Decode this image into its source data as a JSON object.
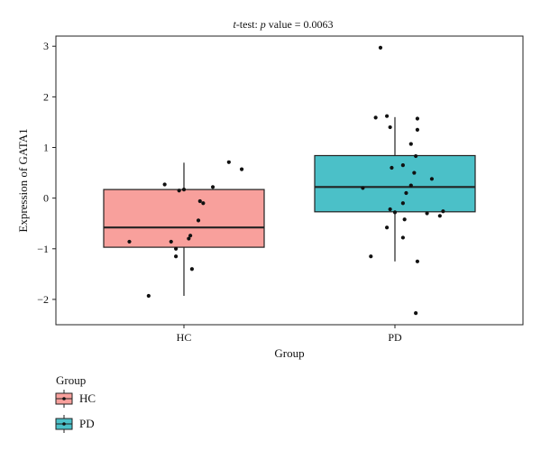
{
  "chart_data": {
    "type": "box",
    "title": {
      "prefix": "t",
      "prefix_rest": "-test: ",
      "p_symbol": "p",
      "rest": " value = 0.0063"
    },
    "xlabel": "Group",
    "ylabel": "Expression of GATA1",
    "ylim": [
      -2.5,
      3.2
    ],
    "yticks": [
      -2,
      -1,
      0,
      1,
      2,
      3
    ],
    "ytick_labels": [
      "−2",
      "−1",
      "0",
      "1",
      "2",
      "3"
    ],
    "categories": [
      "HC",
      "PD"
    ],
    "legend": {
      "title": "Group",
      "position": "bottom-left",
      "entries": [
        "HC",
        "PD"
      ]
    },
    "groups": [
      {
        "name": "HC",
        "color": "#F8A09C",
        "whisker_low": -1.93,
        "q1": -0.97,
        "median": -0.58,
        "q3": 0.17,
        "whisker_high": 0.7,
        "points": [
          {
            "dx": -0.22,
            "y": -1.93
          },
          {
            "dx": -0.34,
            "y": -0.86
          },
          {
            "dx": -0.08,
            "y": -0.86
          },
          {
            "dx": 0.03,
            "y": -0.8
          },
          {
            "dx": 0.04,
            "y": -0.74
          },
          {
            "dx": 0.09,
            "y": -0.44
          },
          {
            "dx": -0.05,
            "y": -1.15
          },
          {
            "dx": -0.05,
            "y": -1.0
          },
          {
            "dx": 0.05,
            "y": -1.4
          },
          {
            "dx": -0.12,
            "y": 0.27
          },
          {
            "dx": -0.03,
            "y": 0.15
          },
          {
            "dx": 0.0,
            "y": 0.17
          },
          {
            "dx": 0.1,
            "y": -0.06
          },
          {
            "dx": 0.12,
            "y": -0.1
          },
          {
            "dx": 0.18,
            "y": 0.22
          },
          {
            "dx": 0.28,
            "y": 0.71
          },
          {
            "dx": 0.36,
            "y": 0.57
          }
        ]
      },
      {
        "name": "PD",
        "color": "#4BC0C8",
        "whisker_low": -1.25,
        "q1": -0.27,
        "median": 0.22,
        "q3": 0.84,
        "whisker_high": 1.6,
        "points": [
          {
            "dx": -0.09,
            "y": 2.97
          },
          {
            "dx": -0.12,
            "y": 1.59
          },
          {
            "dx": -0.05,
            "y": 1.62
          },
          {
            "dx": -0.03,
            "y": 1.4
          },
          {
            "dx": 0.14,
            "y": 1.57
          },
          {
            "dx": 0.14,
            "y": 1.35
          },
          {
            "dx": 0.1,
            "y": 1.07
          },
          {
            "dx": -0.02,
            "y": 0.6
          },
          {
            "dx": 0.05,
            "y": 0.65
          },
          {
            "dx": 0.13,
            "y": 0.83
          },
          {
            "dx": 0.12,
            "y": 0.5
          },
          {
            "dx": 0.23,
            "y": 0.38
          },
          {
            "dx": -0.2,
            "y": 0.2
          },
          {
            "dx": 0.07,
            "y": 0.1
          },
          {
            "dx": 0.1,
            "y": 0.25
          },
          {
            "dx": -0.03,
            "y": -0.22
          },
          {
            "dx": 0.0,
            "y": -0.28
          },
          {
            "dx": 0.05,
            "y": -0.1
          },
          {
            "dx": 0.2,
            "y": -0.3
          },
          {
            "dx": 0.28,
            "y": -0.35
          },
          {
            "dx": 0.3,
            "y": -0.26
          },
          {
            "dx": -0.05,
            "y": -0.58
          },
          {
            "dx": 0.05,
            "y": -0.78
          },
          {
            "dx": -0.15,
            "y": -1.15
          },
          {
            "dx": 0.06,
            "y": -0.42
          },
          {
            "dx": 0.14,
            "y": -1.25
          },
          {
            "dx": 0.13,
            "y": -2.27
          }
        ]
      }
    ]
  }
}
